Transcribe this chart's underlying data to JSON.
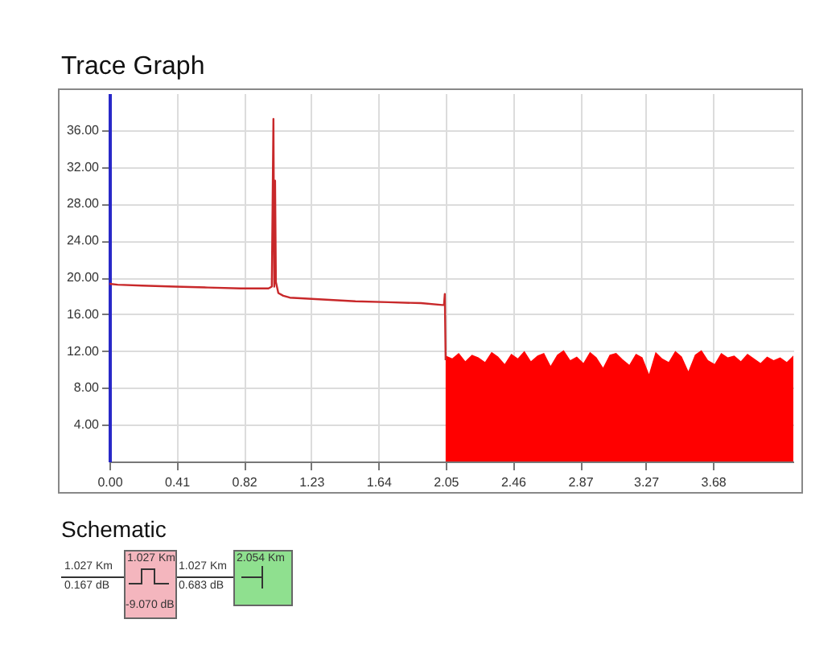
{
  "chart_data": {
    "type": "line",
    "title": "Trace Graph",
    "xlim": [
      0,
      4.17
    ],
    "ylim": [
      0,
      40
    ],
    "xticks": [
      {
        "value": 0,
        "label": "0.00"
      },
      0.41,
      0.82,
      1.23,
      1.64,
      2.05,
      2.46,
      2.87,
      3.27,
      3.68
    ],
    "yticks": [
      {
        "value": 4,
        "label": "4.00"
      },
      {
        "value": 8,
        "label": "8.00"
      },
      {
        "value": 12,
        "label": "12.00"
      },
      {
        "value": 16,
        "label": "16.00"
      },
      {
        "value": 20,
        "label": "20.00"
      },
      {
        "value": 24,
        "label": "24.00"
      },
      {
        "value": 28,
        "label": "28.00"
      },
      {
        "value": 32,
        "label": "32.00"
      },
      {
        "value": 36,
        "label": "36.00"
      }
    ],
    "grid": true,
    "series": [
      {
        "type": "area",
        "color": "#ff0000",
        "x": [
          2.05,
          2.09,
          2.13,
          2.17,
          2.21,
          2.25,
          2.29,
          2.33,
          2.37,
          2.41,
          2.45,
          2.49,
          2.53,
          2.57,
          2.61,
          2.65,
          2.69,
          2.73,
          2.77,
          2.81,
          2.85,
          2.89,
          2.93,
          2.97,
          3.01,
          3.05,
          3.09,
          3.13,
          3.17,
          3.21,
          3.25,
          3.29,
          3.33,
          3.37,
          3.41,
          3.45,
          3.49,
          3.53,
          3.57,
          3.61,
          3.65,
          3.69,
          3.73,
          3.77,
          3.81,
          3.85,
          3.89,
          3.93,
          3.97,
          4.01,
          4.05,
          4.09,
          4.13,
          4.17
        ],
        "values": [
          11.5,
          11.2,
          11.8,
          10.9,
          11.6,
          11.3,
          10.8,
          11.9,
          11.4,
          10.6,
          11.7,
          11.2,
          12.0,
          10.9,
          11.5,
          11.8,
          10.4,
          11.6,
          12.1,
          11.0,
          11.4,
          10.7,
          11.9,
          11.3,
          10.2,
          11.6,
          11.8,
          11.1,
          10.5,
          11.7,
          11.3,
          9.5,
          11.9,
          11.2,
          10.8,
          12.0,
          11.4,
          9.8,
          11.6,
          12.1,
          11.0,
          10.6,
          11.8,
          11.3,
          11.5,
          10.9,
          11.7,
          11.2,
          10.7,
          11.4,
          11.0,
          11.3,
          10.8,
          11.5
        ]
      },
      {
        "type": "line",
        "color": "#c8282a",
        "x": [
          0,
          0.05,
          0.2,
          0.4,
          0.6,
          0.8,
          0.97,
          0.99,
          1.0,
          1.005,
          1.01,
          1.015,
          1.03,
          1.06,
          1.1,
          1.3,
          1.5,
          1.7,
          1.9,
          2.03,
          2.04,
          2.045,
          2.05
        ],
        "values": [
          19.3,
          19.2,
          19.1,
          19.0,
          18.9,
          18.8,
          18.8,
          19.0,
          37.2,
          19.0,
          30.5,
          19.5,
          18.3,
          18.0,
          17.8,
          17.6,
          17.4,
          17.3,
          17.2,
          17.0,
          17.0,
          18.2,
          11.0
        ]
      }
    ],
    "annotations": [
      "Schematic",
      "1.027 Km",
      "0.167 dB",
      "1.027 Km",
      "-9.070 dB",
      "1.027 Km",
      "0.683 dB",
      "2.054 Km"
    ]
  }
}
